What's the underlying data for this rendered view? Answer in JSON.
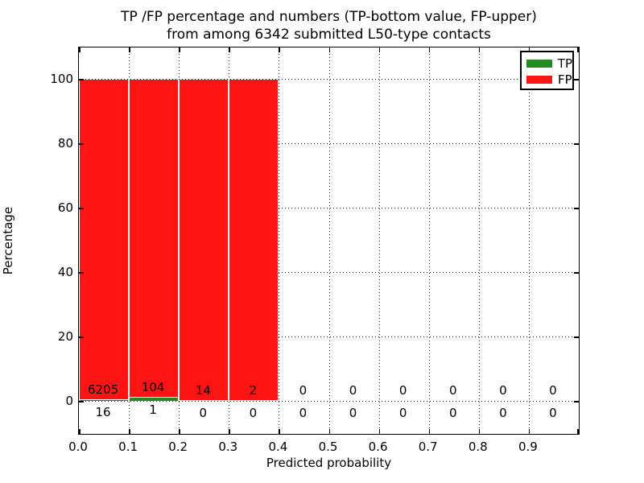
{
  "chart_data": {
    "type": "bar",
    "stacked": true,
    "title_line1": "TP /FP percentage and numbers (TP-bottom value, FP-upper)",
    "title_line2": "from among 6342 submitted L50-type contacts",
    "xlabel": "Predicted probability",
    "ylabel": "Percentage",
    "x_tick_labels": [
      "0.0",
      "0.1",
      "0.2",
      "0.3",
      "0.4",
      "0.5",
      "0.6",
      "0.7",
      "0.8",
      "0.9"
    ],
    "y_tick_values": [
      0,
      20,
      40,
      60,
      80,
      100
    ],
    "y_tick_labels": [
      "0",
      "20",
      "40",
      "60",
      "80",
      "100"
    ],
    "xlim": [
      0.0,
      1.0
    ],
    "ylim": [
      -10.5,
      110.5
    ],
    "bin_edges": [
      0.0,
      0.1,
      0.2,
      0.3,
      0.4,
      0.5,
      0.6,
      0.7,
      0.8,
      0.9,
      1.0
    ],
    "total_submitted": 6342,
    "series": [
      {
        "name": "TP",
        "position": "bottom",
        "color": "#228b22",
        "counts": [
          16,
          1,
          0,
          0,
          0,
          0,
          0,
          0,
          0,
          0
        ],
        "percent": [
          0.26,
          0.95,
          0.0,
          0.0,
          0,
          0,
          0,
          0,
          0,
          0
        ]
      },
      {
        "name": "FP",
        "position": "upper",
        "color": "#ff1414",
        "counts": [
          6205,
          104,
          14,
          2,
          0,
          0,
          0,
          0,
          0,
          0
        ],
        "percent": [
          99.74,
          99.05,
          100.0,
          100.0,
          0,
          0,
          0,
          0,
          0,
          0
        ]
      }
    ],
    "legend": {
      "position": "upper right",
      "entries": [
        "TP",
        "FP"
      ]
    },
    "grid": {
      "style": "dotted",
      "color": "#000000"
    },
    "background": "#ffffff"
  }
}
